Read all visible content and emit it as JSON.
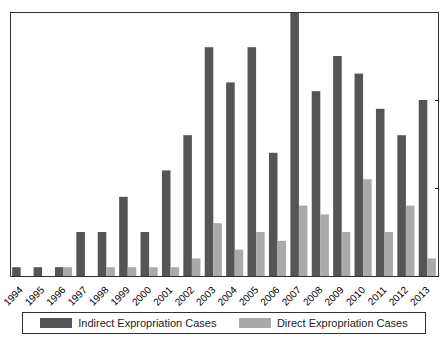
{
  "chart_data": {
    "type": "bar",
    "categories": [
      "1994",
      "1995",
      "1996",
      "1997",
      "1998",
      "1999",
      "2000",
      "2001",
      "2002",
      "2003",
      "2004",
      "2005",
      "2006",
      "2007",
      "2008",
      "2009",
      "2010",
      "2011",
      "2012",
      "2013"
    ],
    "series": [
      {
        "name": "Indirect Expropriation Cases",
        "color": "#555555",
        "values": [
          1,
          1,
          1,
          5,
          5,
          9,
          5,
          12,
          16,
          26,
          22,
          26,
          14,
          30,
          21,
          25,
          23,
          19,
          16,
          20
        ]
      },
      {
        "name": "Direct Expropriation Cases",
        "color": "#aaaaaa",
        "values": [
          0,
          0,
          1,
          0,
          1,
          1,
          1,
          1,
          2,
          6,
          3,
          5,
          4,
          8,
          7,
          5,
          11,
          5,
          8,
          2
        ]
      }
    ],
    "ylim": [
      0,
      30
    ],
    "yticks": [
      0,
      10,
      20,
      30
    ],
    "tick_labels": "x",
    "legend": "bottom"
  }
}
